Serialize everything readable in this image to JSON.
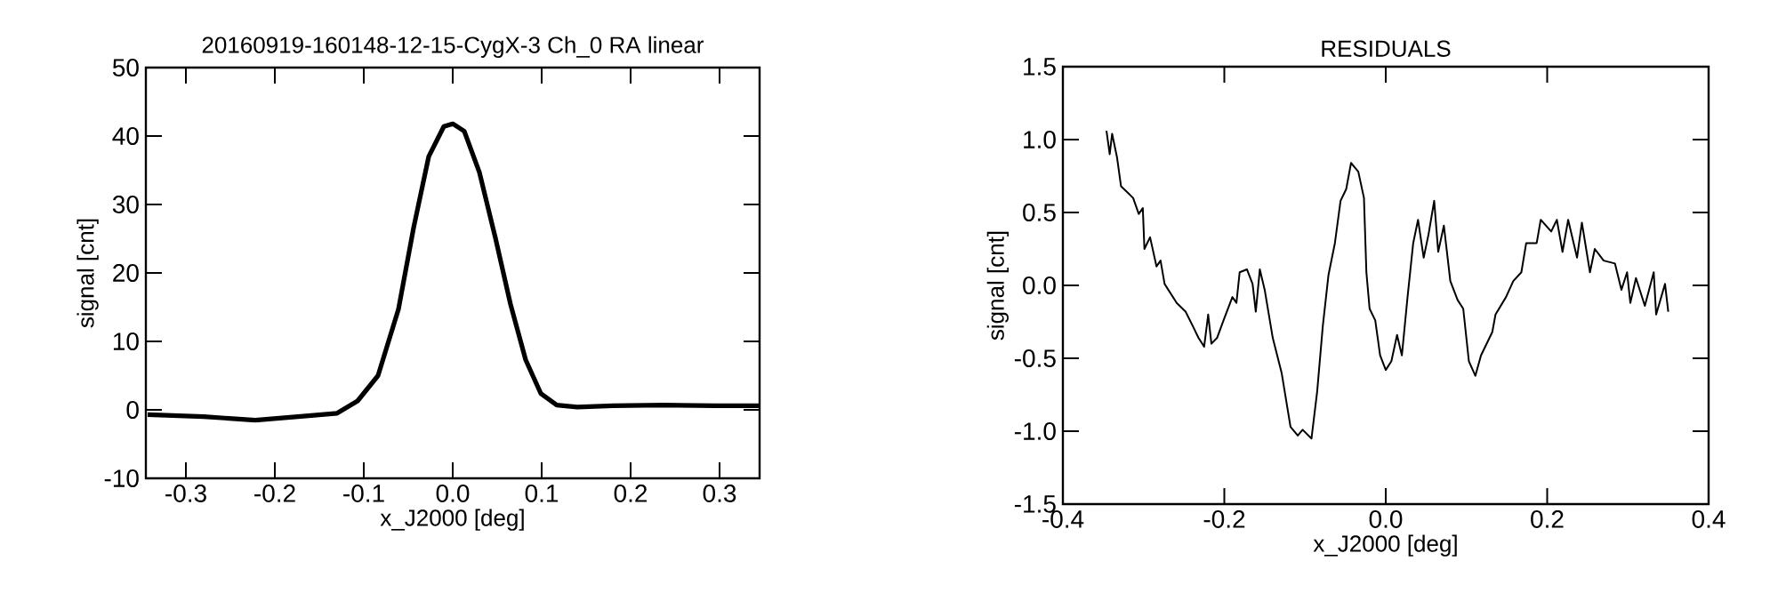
{
  "chart_data": [
    {
      "type": "line",
      "title": "20160919-160148-12-15-CygX-3 Ch_0 RA linear",
      "xlabel": "x_J2000 [deg]",
      "ylabel": "signal [cnt]",
      "xlim": [
        -0.345,
        0.345
      ],
      "ylim": [
        -10,
        50
      ],
      "xticks": [
        -0.3,
        -0.2,
        -0.1,
        {
          "value": 0,
          "label": "0.0"
        },
        0.1,
        0.2,
        0.3
      ],
      "yticks": [
        -10,
        0,
        10,
        20,
        30,
        40,
        50
      ],
      "x": [
        -0.343,
        -0.28,
        -0.222,
        -0.165,
        -0.13,
        -0.107,
        -0.084,
        -0.061,
        -0.044,
        -0.027,
        -0.01,
        0,
        0.013,
        0.03,
        0.048,
        0.065,
        0.082,
        0.099,
        0.117,
        0.14,
        0.18,
        0.237,
        0.295,
        0.345
      ],
      "series": [
        {
          "color": "#000000",
          "values": [
            -0.7,
            -1.0,
            -1.5,
            -0.9,
            -0.5,
            1.3,
            5.0,
            14.7,
            26.6,
            37.0,
            41.4,
            41.8,
            40.7,
            34.7,
            25.1,
            15.4,
            7.3,
            2.4,
            0.7,
            0.4,
            0.6,
            0.7,
            0.6,
            0.6
          ]
        }
      ]
    },
    {
      "type": "line",
      "title": "RESIDUALS",
      "xlabel": "x_J2000 [deg]",
      "ylabel": "signal [cnt]",
      "xlim": [
        -0.4,
        0.4
      ],
      "ylim": [
        -1.5,
        1.5
      ],
      "xticks": [
        -0.4,
        -0.2,
        {
          "value": 0,
          "label": "0.0"
        },
        0.2,
        0.4
      ],
      "yticks": [
        {
          "value": -1.5,
          "label": "-1.5"
        },
        {
          "value": -1,
          "label": "-1.0"
        },
        -0.5,
        {
          "value": 0,
          "label": "0.0"
        },
        0.5,
        {
          "value": 1,
          "label": "1.0"
        },
        1.5
      ],
      "x": [
        -0.346,
        -0.342,
        -0.339,
        -0.333,
        -0.328,
        -0.313,
        -0.306,
        -0.301,
        -0.299,
        -0.292,
        -0.284,
        -0.279,
        -0.274,
        -0.259,
        -0.248,
        -0.239,
        -0.232,
        -0.225,
        -0.22,
        -0.216,
        -0.209,
        -0.201,
        -0.19,
        -0.185,
        -0.181,
        -0.172,
        -0.165,
        -0.161,
        -0.156,
        -0.15,
        -0.14,
        -0.129,
        -0.118,
        -0.109,
        -0.103,
        -0.092,
        -0.085,
        -0.078,
        -0.071,
        -0.063,
        -0.056,
        -0.049,
        -0.043,
        -0.034,
        -0.027,
        -0.024,
        -0.02,
        -0.013,
        -0.007,
        0.0,
        0.007,
        0.014,
        0.02,
        0.027,
        0.034,
        0.04,
        0.047,
        0.053,
        0.06,
        0.065,
        0.072,
        0.08,
        0.089,
        0.096,
        0.103,
        0.111,
        0.118,
        0.132,
        0.136,
        0.149,
        0.158,
        0.168,
        0.174,
        0.187,
        0.192,
        0.205,
        0.212,
        0.219,
        0.226,
        0.237,
        0.243,
        0.253,
        0.259,
        0.27,
        0.284,
        0.292,
        0.299,
        0.303,
        0.31,
        0.321,
        0.332,
        0.335,
        0.346,
        0.35
      ],
      "series": [
        {
          "color": "#000000",
          "values": [
            1.06,
            0.9,
            1.04,
            0.88,
            0.68,
            0.6,
            0.49,
            0.53,
            0.25,
            0.33,
            0.13,
            0.17,
            0.01,
            -0.12,
            -0.18,
            -0.28,
            -0.36,
            -0.42,
            -0.2,
            -0.4,
            -0.36,
            -0.24,
            -0.08,
            -0.12,
            0.09,
            0.11,
            0.01,
            -0.18,
            0.11,
            -0.03,
            -0.36,
            -0.6,
            -0.97,
            -1.03,
            -0.99,
            -1.05,
            -0.73,
            -0.28,
            0.07,
            0.29,
            0.58,
            0.66,
            0.84,
            0.78,
            0.6,
            0.09,
            -0.16,
            -0.24,
            -0.48,
            -0.58,
            -0.52,
            -0.34,
            -0.48,
            -0.08,
            0.29,
            0.45,
            0.19,
            0.35,
            0.58,
            0.23,
            0.41,
            0.03,
            -0.1,
            -0.16,
            -0.52,
            -0.62,
            -0.48,
            -0.32,
            -0.2,
            -0.08,
            0.03,
            0.09,
            0.29,
            0.29,
            0.45,
            0.37,
            0.45,
            0.23,
            0.45,
            0.19,
            0.43,
            0.09,
            0.25,
            0.17,
            0.15,
            -0.03,
            0.09,
            -0.12,
            0.05,
            -0.14,
            0.09,
            -0.2,
            0.01,
            -0.18
          ]
        }
      ]
    }
  ]
}
